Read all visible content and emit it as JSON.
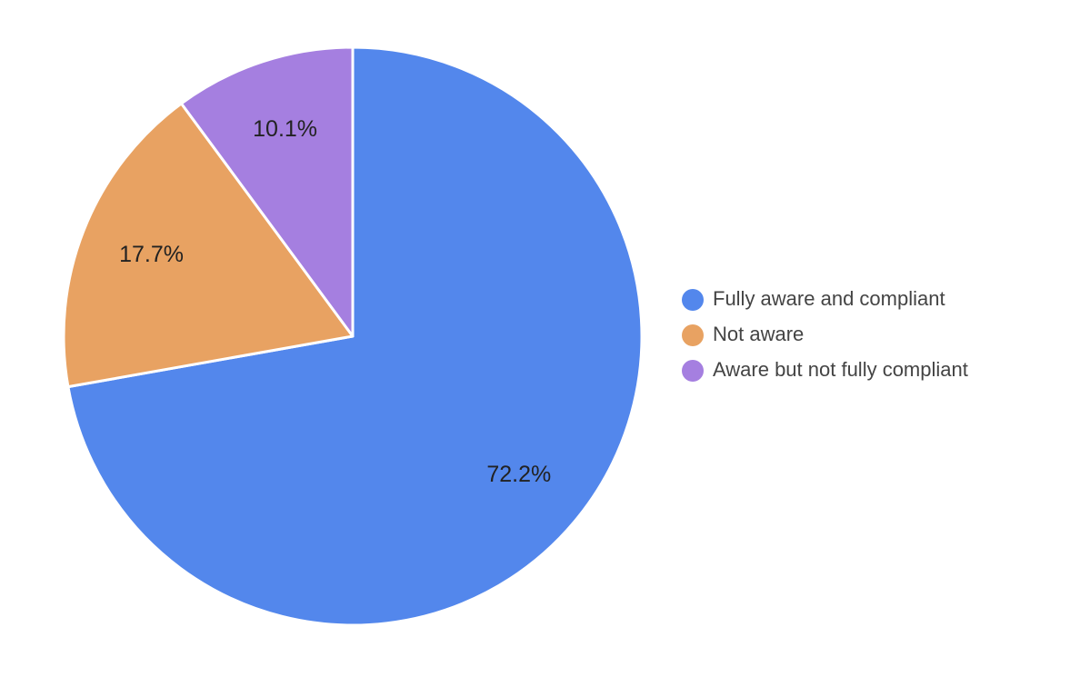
{
  "chart_data": {
    "type": "pie",
    "categories": [
      "Fully aware and compliant",
      "Not aware",
      "Aware but not fully compliant"
    ],
    "values": [
      72.2,
      17.7,
      10.1
    ],
    "value_labels": [
      "72.2%",
      "17.7%",
      "10.1%"
    ],
    "colors": [
      "#5387ec",
      "#e8a262",
      "#a57fe0"
    ],
    "legend": "right"
  }
}
